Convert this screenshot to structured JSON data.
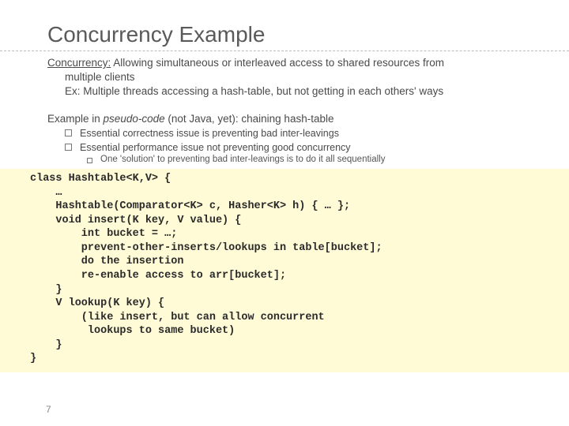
{
  "title": "Concurrency Example",
  "def_label": "Concurrency:",
  "def_rest": " Allowing simultaneous or interleaved access to shared resources from",
  "def_line2": "multiple clients",
  "ex_line": "Ex: Multiple threads accessing a hash-table, but not getting in each others' ways",
  "example_prefix": "Example in ",
  "example_italic": "pseudo-code",
  "example_rest": " (not Java, yet): chaining hash-table",
  "bullets": [
    "Essential correctness issue is preventing bad inter-leavings",
    "Essential performance issue not preventing good concurrency"
  ],
  "subbullet": "One 'solution' to preventing bad inter-leavings is to do it all sequentially",
  "code": "class Hashtable<K,V> {\n    …\n    Hashtable(Comparator<K> c, Hasher<K> h) { … };\n    void insert(K key, V value) {\n        int bucket = …;\n        prevent-other-inserts/lookups in table[bucket];\n        do the insertion\n        re-enable access to arr[bucket];\n    }\n    V lookup(K key) {\n        (like insert, but can allow concurrent\n         lookups to same bucket)\n    }\n}",
  "slide_number": "7",
  "colors": {
    "code_bg": "#fffbd6",
    "title_color": "#5a5a5a",
    "text_color": "#4a4a4a"
  }
}
